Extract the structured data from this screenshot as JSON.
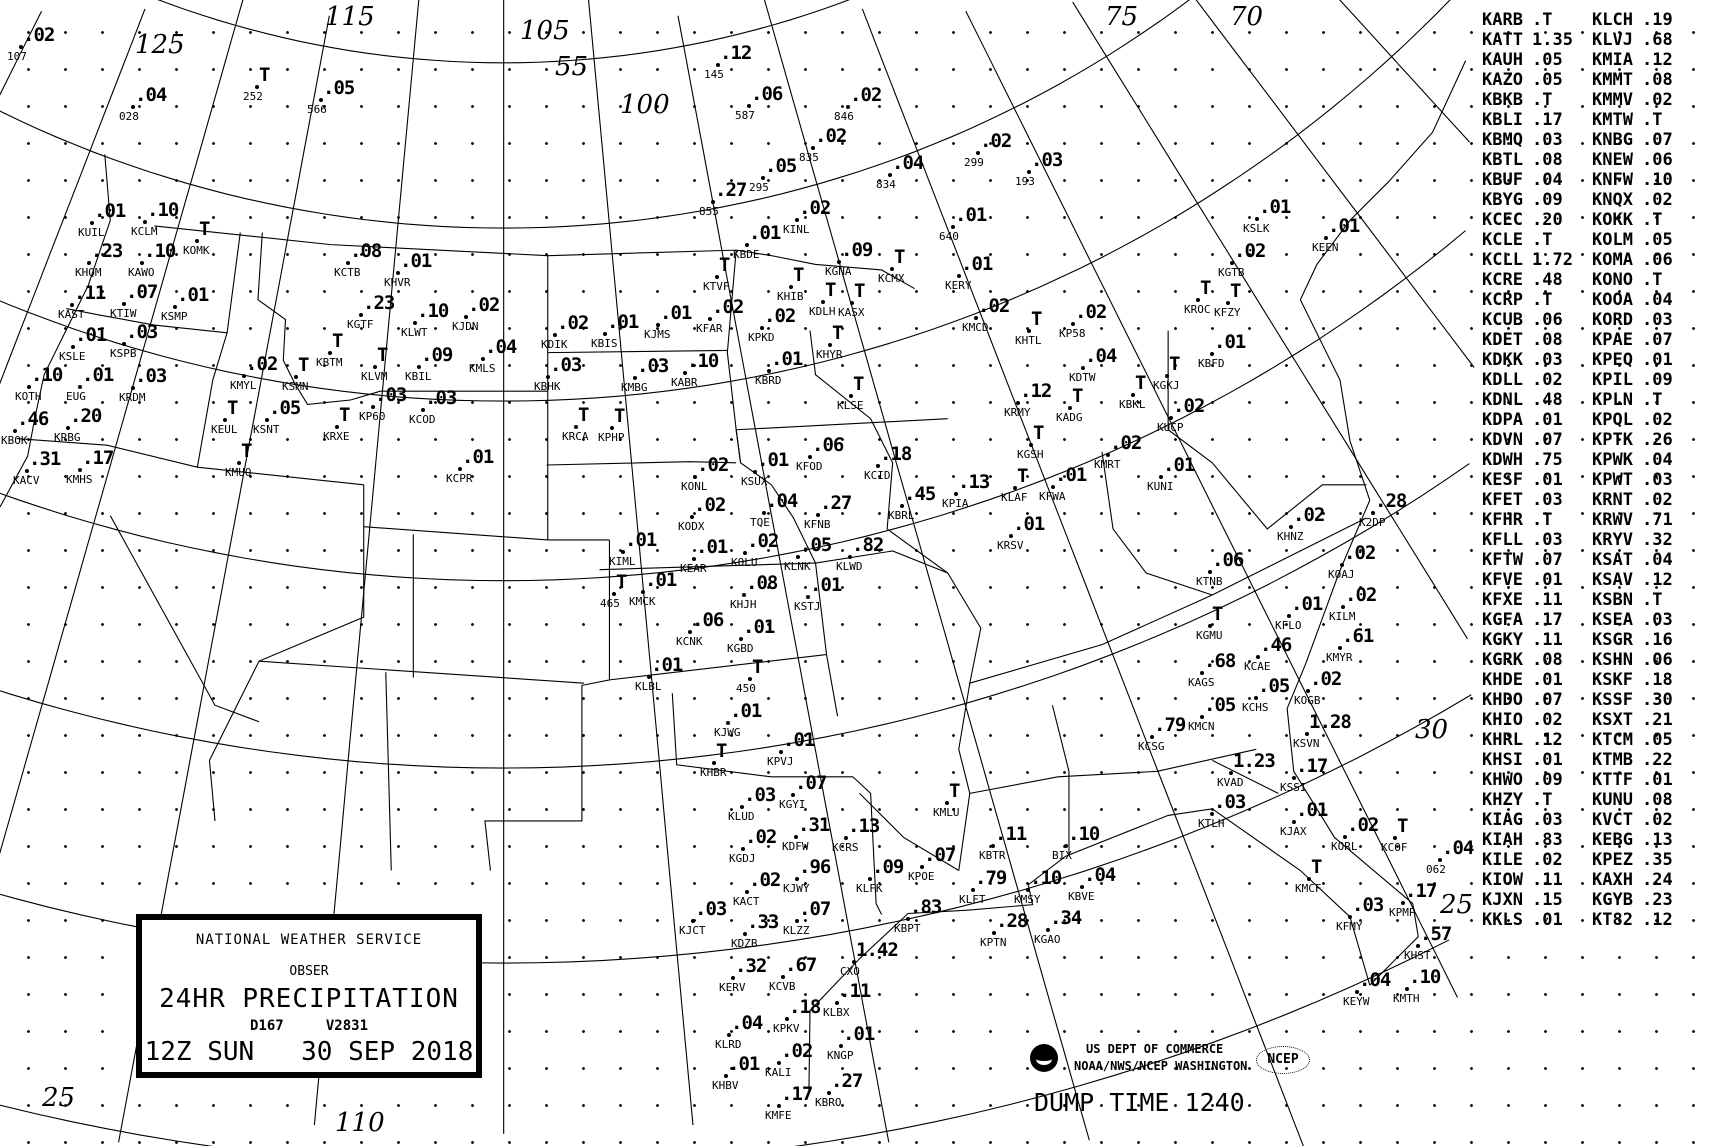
{
  "title_box": {
    "agency": "NATIONAL WEATHER SERVICE",
    "obser": "OBSER",
    "product": "24HR PRECIPITATION",
    "code_d": "D167",
    "code_v": "V2831",
    "valid": "12Z SUN   30 SEP 2018"
  },
  "footer": {
    "dept": "US DEPT OF COMMERCE",
    "office": "NOAA/NWS/NCEP WASHINGTON",
    "ncep_logo": "NCEP",
    "noaa_logo": "noaa-emblem-icon",
    "dump_time": "DUMP TIME 1240"
  },
  "grid_labels": [
    "125",
    "115",
    "105",
    "100",
    "55",
    "75",
    "70",
    "30",
    "25",
    "25",
    "110"
  ],
  "station_table": [
    {
      "a": "KARB",
      "av": ".T",
      "b": "KLCH",
      "bv": ".19"
    },
    {
      "a": "KATT",
      "av": "1.35",
      "b": "KLVJ",
      "bv": ".68"
    },
    {
      "a": "KAUH",
      "av": ".05",
      "b": "KMIA",
      "bv": ".12"
    },
    {
      "a": "KAZO",
      "av": ".05",
      "b": "KMMT",
      "bv": ".08"
    },
    {
      "a": "KBKB",
      "av": ".T",
      "b": "KMMV",
      "bv": ".02"
    },
    {
      "a": "KBLI",
      "av": ".17",
      "b": "KMTW",
      "bv": ".T"
    },
    {
      "a": "KBMQ",
      "av": ".03",
      "b": "KNBG",
      "bv": ".07"
    },
    {
      "a": "KBTL",
      "av": ".08",
      "b": "KNEW",
      "bv": ".06"
    },
    {
      "a": "KBUF",
      "av": ".04",
      "b": "KNFW",
      "bv": ".10"
    },
    {
      "a": "KBYG",
      "av": ".09",
      "b": "KNQX",
      "bv": ".02"
    },
    {
      "a": "KCEC",
      "av": ".20",
      "b": "KOKK",
      "bv": ".T"
    },
    {
      "a": "KCLE",
      "av": ".T",
      "b": "KOLM",
      "bv": ".05"
    },
    {
      "a": "KCLL",
      "av": "1.72",
      "b": "KOMA",
      "bv": ".06"
    },
    {
      "a": "KCRE",
      "av": ".48",
      "b": "KONO",
      "bv": ".T"
    },
    {
      "a": "KCRP",
      "av": ".T",
      "b": "KOOA",
      "bv": ".04"
    },
    {
      "a": "KCUB",
      "av": ".06",
      "b": "KORD",
      "bv": ".03"
    },
    {
      "a": "KDET",
      "av": ".08",
      "b": "KPAE",
      "bv": ".07"
    },
    {
      "a": "KDKK",
      "av": ".03",
      "b": "KPEQ",
      "bv": ".01"
    },
    {
      "a": "KDLL",
      "av": ".02",
      "b": "KPIL",
      "bv": ".09"
    },
    {
      "a": "KDNL",
      "av": ".48",
      "b": "KPLN",
      "bv": ".T"
    },
    {
      "a": "KDPA",
      "av": ".01",
      "b": "KPQL",
      "bv": ".02"
    },
    {
      "a": "KDVN",
      "av": ".07",
      "b": "KPTK",
      "bv": ".26"
    },
    {
      "a": "KDWH",
      "av": ".75",
      "b": "KPWK",
      "bv": ".04"
    },
    {
      "a": "KESF",
      "av": ".01",
      "b": "KPWT",
      "bv": ".03"
    },
    {
      "a": "KFET",
      "av": ".03",
      "b": "KRNT",
      "bv": ".02"
    },
    {
      "a": "KFHR",
      "av": ".T",
      "b": "KRWV",
      "bv": ".71"
    },
    {
      "a": "KFLL",
      "av": ".03",
      "b": "KRYV",
      "bv": ".32"
    },
    {
      "a": "KFTW",
      "av": ".07",
      "b": "KSAT",
      "bv": ".04"
    },
    {
      "a": "KFVE",
      "av": ".01",
      "b": "KSAV",
      "bv": ".12"
    },
    {
      "a": "KFXE",
      "av": ".11",
      "b": "KSBN",
      "bv": ".T"
    },
    {
      "a": "KGFA",
      "av": ".17",
      "b": "KSEA",
      "bv": ".03"
    },
    {
      "a": "KGKY",
      "av": ".11",
      "b": "KSGR",
      "bv": ".16"
    },
    {
      "a": "KGRK",
      "av": ".08",
      "b": "KSHN",
      "bv": ".06"
    },
    {
      "a": "KHDE",
      "av": ".01",
      "b": "KSKF",
      "bv": ".18"
    },
    {
      "a": "KHDO",
      "av": ".07",
      "b": "KSSF",
      "bv": ".30"
    },
    {
      "a": "KHIO",
      "av": ".02",
      "b": "KSXT",
      "bv": ".21"
    },
    {
      "a": "KHRL",
      "av": ".12",
      "b": "KTCM",
      "bv": ".05"
    },
    {
      "a": "KHSI",
      "av": ".01",
      "b": "KTMB",
      "bv": ".22"
    },
    {
      "a": "KHWO",
      "av": ".09",
      "b": "KTTF",
      "bv": ".01"
    },
    {
      "a": "KHZY",
      "av": ".T",
      "b": "KUNU",
      "bv": ".08"
    },
    {
      "a": "KIAG",
      "av": ".03",
      "b": "KVCT",
      "bv": ".02"
    },
    {
      "a": "KIAH",
      "av": ".83",
      "b": "KEBG",
      "bv": ".13"
    },
    {
      "a": "KILE",
      "av": ".02",
      "b": "KPEZ",
      "bv": ".35"
    },
    {
      "a": "KIOW",
      "av": ".11",
      "b": "KAXH",
      "bv": ".24"
    },
    {
      "a": "KJXN",
      "av": ".15",
      "b": "KGYB",
      "bv": ".23"
    },
    {
      "a": "KKLS",
      "av": ".01",
      "b": "KT82",
      "bv": ".12"
    }
  ],
  "stations": [
    {
      "id": "KUIL",
      "v": ".01"
    },
    {
      "id": "KCLM",
      "v": ".10"
    },
    {
      "id": "KAWO",
      "v": ".10"
    },
    {
      "id": "KOMK",
      "v": "T"
    },
    {
      "id": "KHQM",
      "v": ".23"
    },
    {
      "id": "KTIW",
      "v": ".07"
    },
    {
      "id": "KSMP",
      "v": ".01"
    },
    {
      "id": "KAST",
      "v": ".11"
    },
    {
      "id": "KSPB",
      "v": ".03"
    },
    {
      "id": "KSLE",
      "v": ".01"
    },
    {
      "id": "EUG",
      "v": ".01"
    },
    {
      "id": "KRDM",
      "v": ".03"
    },
    {
      "id": "KOTH",
      "v": ".10"
    },
    {
      "id": "KRBG",
      "v": ".20"
    },
    {
      "id": "KBOK",
      "v": ".46"
    },
    {
      "id": "KACV",
      "v": ".31"
    },
    {
      "id": "KMHS",
      "v": ".17"
    },
    {
      "id": "KCTB",
      "v": ".08"
    },
    {
      "id": "KHVR",
      "v": ".01"
    },
    {
      "id": "KGTF",
      "v": ".23"
    },
    {
      "id": "KLWT",
      "v": ".10"
    },
    {
      "id": "KJDN",
      "v": ".02"
    },
    {
      "id": "KMLS",
      "v": ".04"
    },
    {
      "id": "KBTM",
      "v": "T"
    },
    {
      "id": "KLVM",
      "v": "T"
    },
    {
      "id": "KBIL",
      "v": ".09"
    },
    {
      "id": "KMYL",
      "v": ".02"
    },
    {
      "id": "KSMN",
      "v": "T"
    },
    {
      "id": "KSNT",
      "v": ".05"
    },
    {
      "id": "KEUL",
      "v": "T"
    },
    {
      "id": "KMUO",
      "v": "T"
    },
    {
      "id": "KRXE",
      "v": "T"
    },
    {
      "id": "KP60",
      "v": ".03"
    },
    {
      "id": "KCOD",
      "v": ".03"
    },
    {
      "id": "KCPR",
      "v": ".01"
    },
    {
      "id": "028",
      "v": ".04"
    },
    {
      "id": "566",
      "v": ".05"
    },
    {
      "id": "252",
      "v": "T"
    },
    {
      "id": "107",
      "v": ".02"
    },
    {
      "id": "KTVF",
      "v": "T"
    },
    {
      "id": "KHIB",
      "v": "T"
    },
    {
      "id": "KDLH",
      "v": "T"
    },
    {
      "id": "KASX",
      "v": "T"
    },
    {
      "id": "KHYR",
      "v": "T"
    },
    {
      "id": "KFAR",
      "v": ".02"
    },
    {
      "id": "KPKD",
      "v": ".02"
    },
    {
      "id": "KBRD",
      "v": ".01"
    },
    {
      "id": "KJMS",
      "v": ".01"
    },
    {
      "id": "KBIS",
      "v": ".01"
    },
    {
      "id": "KDIK",
      "v": ".02"
    },
    {
      "id": "KBHK",
      "v": ".03"
    },
    {
      "id": "KMBG",
      "v": ".03"
    },
    {
      "id": "KABR",
      "v": ".10"
    },
    {
      "id": "KRCA",
      "v": "T"
    },
    {
      "id": "KPHP",
      "v": "T"
    },
    {
      "id": "KGNA",
      "v": ".09"
    },
    {
      "id": "KCMX",
      "v": "T"
    },
    {
      "id": "KERY",
      "v": ".01"
    },
    {
      "id": "KMCD",
      "v": ".02"
    },
    {
      "id": "KLSE",
      "v": "T"
    },
    {
      "id": "KBDE",
      "v": ".01"
    },
    {
      "id": "KINL",
      "v": ".02"
    },
    {
      "id": "640",
      "v": ".01"
    },
    {
      "id": "834",
      "v": ".04"
    },
    {
      "id": "846",
      "v": ".02"
    },
    {
      "id": "835",
      "v": ".02"
    },
    {
      "id": "587",
      "v": ".06"
    },
    {
      "id": "145",
      "v": ".12"
    },
    {
      "id": "295",
      "v": ".05"
    },
    {
      "id": "855",
      "v": ".27"
    },
    {
      "id": "299",
      "v": ".02"
    },
    {
      "id": "193",
      "v": ".03"
    },
    {
      "id": "KSLK",
      "v": ".01"
    },
    {
      "id": "KEEN",
      "v": ".01"
    },
    {
      "id": "KGTB",
      "v": ".02"
    },
    {
      "id": "KFZY",
      "v": "T"
    },
    {
      "id": "KROC",
      "v": "T"
    },
    {
      "id": "KBFD",
      "v": ".01"
    },
    {
      "id": "KGKJ",
      "v": "T"
    },
    {
      "id": "KUCP",
      "v": ".02"
    },
    {
      "id": "KBKL",
      "v": "T"
    },
    {
      "id": "KMRT",
      "v": ".02"
    },
    {
      "id": "KUNI",
      "v": ".01"
    },
    {
      "id": "KHTL",
      "v": "T"
    },
    {
      "id": "KP58",
      "v": ".02"
    },
    {
      "id": "KADG",
      "v": "T"
    },
    {
      "id": "KRMY",
      "v": ".12"
    },
    {
      "id": "KGSH",
      "v": "T"
    },
    {
      "id": "KFWA",
      "v": ".01"
    },
    {
      "id": "KLAF",
      "v": "T"
    },
    {
      "id": "KRSV",
      "v": ".01"
    },
    {
      "id": "KDTW",
      "v": ".04"
    },
    {
      "id": "K2DP",
      "v": ".28"
    },
    {
      "id": "KHNZ",
      "v": ".02"
    },
    {
      "id": "KTNB",
      "v": ".06"
    },
    {
      "id": "KOAJ",
      "v": ".02"
    },
    {
      "id": "KILM",
      "v": ".02"
    },
    {
      "id": "KFLO",
      "v": ".01"
    },
    {
      "id": "KMYR",
      "v": ".61"
    },
    {
      "id": "KGMU",
      "v": "T"
    },
    {
      "id": "KONL",
      "v": ".02"
    },
    {
      "id": "KSUX",
      "v": ".01"
    },
    {
      "id": "KFOD",
      "v": ".06"
    },
    {
      "id": "KCID",
      "v": ".18"
    },
    {
      "id": "TQE",
      "v": ".04"
    },
    {
      "id": "KODX",
      "v": ".02"
    },
    {
      "id": "KOLU",
      "v": ".02"
    },
    {
      "id": "KEAR",
      "v": ".01"
    },
    {
      "id": "KLNK",
      "v": ".05"
    },
    {
      "id": "KSTJ",
      "v": ".01"
    },
    {
      "id": "KFNB",
      "v": ".27"
    },
    {
      "id": "KLWD",
      "v": ".82"
    },
    {
      "id": "KIML",
      "v": ".01"
    },
    {
      "id": "KMCK",
      "v": ".01"
    },
    {
      "id": "KHJH",
      "v": ".08"
    },
    {
      "id": "KCNK",
      "v": ".06"
    },
    {
      "id": "465",
      "v": "T"
    },
    {
      "id": "KGBD",
      "v": ".01"
    },
    {
      "id": "450",
      "v": "T"
    },
    {
      "id": "KLBL",
      "v": ".01"
    },
    {
      "id": "KJWG",
      "v": ".01"
    },
    {
      "id": "KHBR",
      "v": "T"
    },
    {
      "id": "KPVJ",
      "v": ".01"
    },
    {
      "id": "KBRL",
      "v": ".45"
    },
    {
      "id": "KPIA",
      "v": ".13"
    },
    {
      "id": "KGYI",
      "v": ".07"
    },
    {
      "id": "KLUD",
      "v": ".03"
    },
    {
      "id": "KDFW",
      "v": ".31"
    },
    {
      "id": "KGDJ",
      "v": ".02"
    },
    {
      "id": "KJWY",
      "v": ".96"
    },
    {
      "id": "KCRS",
      "v": ".13"
    },
    {
      "id": "KACT",
      "v": ".02"
    },
    {
      "id": "KLZZ",
      "v": ".07"
    },
    {
      "id": "KDZB",
      "v": ".33"
    },
    {
      "id": "KJCT",
      "v": ".03"
    },
    {
      "id": "KERV",
      "v": ".32"
    },
    {
      "id": "KCVB",
      "v": ".67"
    },
    {
      "id": "KLFK",
      "v": ".09"
    },
    {
      "id": "KPOE",
      "v": ".07"
    },
    {
      "id": "KMLU",
      "v": "T"
    },
    {
      "id": "KBPT",
      "v": ".83"
    },
    {
      "id": "KLFT",
      "v": ".79"
    },
    {
      "id": "KBTR",
      "v": ".11"
    },
    {
      "id": "KMSY",
      "v": ".10"
    },
    {
      "id": "KPTN",
      "v": ".28"
    },
    {
      "id": "KGAO",
      "v": ".34"
    },
    {
      "id": "KBVE",
      "v": ".04"
    },
    {
      "id": "BIX",
      "v": ".10"
    },
    {
      "id": "CXO",
      "v": "1.42"
    },
    {
      "id": "KLBX",
      "v": ".11"
    },
    {
      "id": "KPKV",
      "v": ".18"
    },
    {
      "id": "KNGP",
      "v": ".01"
    },
    {
      "id": "KALI",
      "v": ".02"
    },
    {
      "id": "KLRD",
      "v": ".04"
    },
    {
      "id": "KHBV",
      "v": ".01"
    },
    {
      "id": "KMFE",
      "v": ".17"
    },
    {
      "id": "KBRO",
      "v": ".27"
    },
    {
      "id": "KCAE",
      "v": ".46"
    },
    {
      "id": "KOGB",
      "v": ".02"
    },
    {
      "id": "KCHS",
      "v": ".05"
    },
    {
      "id": "KAGS",
      "v": ".68"
    },
    {
      "id": "KSVN",
      "v": "1.28"
    },
    {
      "id": "KMCN",
      "v": ".05"
    },
    {
      "id": "KCSG",
      "v": ".79"
    },
    {
      "id": "KSSI",
      "v": ".17"
    },
    {
      "id": "KJAX",
      "v": ".01"
    },
    {
      "id": "KVAD",
      "v": "1.23"
    },
    {
      "id": "KTLH",
      "v": ".03"
    },
    {
      "id": "KORL",
      "v": ".02"
    },
    {
      "id": "KCOF",
      "v": "T"
    },
    {
      "id": "KMCF",
      "v": "T"
    },
    {
      "id": "KFMY",
      "v": ".03"
    },
    {
      "id": "KPMP",
      "v": ".17"
    },
    {
      "id": "KHST",
      "v": ".57"
    },
    {
      "id": "KMTH",
      "v": ".10"
    },
    {
      "id": "KEYW",
      "v": ".04"
    },
    {
      "id": "062",
      "v": ".04"
    }
  ]
}
